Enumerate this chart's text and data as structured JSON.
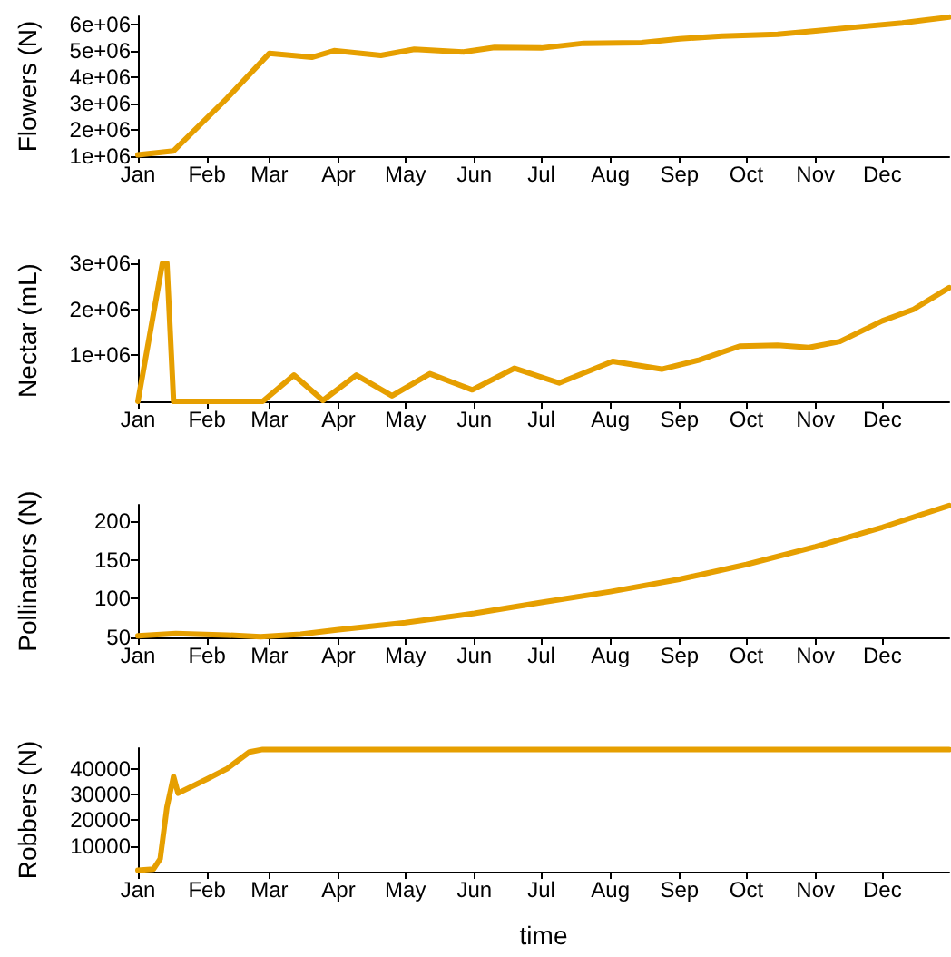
{
  "chart_data": [
    {
      "type": "line",
      "ylabel": "Flowers (N)",
      "marker": "none",
      "line_style": "solid",
      "grid": false,
      "xlim": [
        "--01-01",
        "--12-31"
      ],
      "xticks": [
        {
          "value": "--01-01",
          "label": "Jan"
        },
        {
          "value": "--02-01",
          "label": "Feb"
        },
        {
          "value": "--03-01",
          "label": "Mar"
        },
        {
          "value": "--04-01",
          "label": "Apr"
        },
        {
          "value": "--05-01",
          "label": "May"
        },
        {
          "value": "--06-01",
          "label": "Jun"
        },
        {
          "value": "--07-01",
          "label": "Jul"
        },
        {
          "value": "--08-01",
          "label": "Aug"
        },
        {
          "value": "--09-01",
          "label": "Sep"
        },
        {
          "value": "--10-01",
          "label": "Oct"
        },
        {
          "value": "--11-01",
          "label": "Nov"
        },
        {
          "value": "--12-01",
          "label": "Dec"
        }
      ],
      "ylim": [
        1000000,
        6300000
      ],
      "yticks": [
        {
          "value": 1000000,
          "label": "1e+06"
        },
        {
          "value": 2000000,
          "label": "2e+06"
        },
        {
          "value": 3000000,
          "label": "3e+06"
        },
        {
          "value": 4000000,
          "label": "4e+06"
        },
        {
          "value": 5000000,
          "label": "5e+06"
        },
        {
          "value": 6000000,
          "label": "6e+06"
        }
      ],
      "series": [
        {
          "color": "#e69f00",
          "x": [
            "--01-01",
            "--01-17",
            "--02-10",
            "--03-01",
            "--03-20",
            "--03-30",
            "--04-20",
            "--05-05",
            "--05-27",
            "--06-10",
            "--07-01",
            "--07-20",
            "--08-15",
            "--09-01",
            "--09-20",
            "--10-15",
            "--11-01",
            "--11-20",
            "--12-10",
            "--12-31"
          ],
          "values": [
            1050000,
            1200000,
            3200000,
            4900000,
            4750000,
            5000000,
            4820000,
            5050000,
            4950000,
            5120000,
            5100000,
            5280000,
            5300000,
            5450000,
            5550000,
            5620000,
            5750000,
            5900000,
            6050000,
            6270000
          ]
        }
      ]
    },
    {
      "type": "line",
      "ylabel": "Nectar (mL)",
      "marker": "none",
      "line_style": "solid",
      "grid": false,
      "xlim": [
        "--01-01",
        "--12-31"
      ],
      "xticks": [
        {
          "value": "--01-01",
          "label": "Jan"
        },
        {
          "value": "--02-01",
          "label": "Feb"
        },
        {
          "value": "--03-01",
          "label": "Mar"
        },
        {
          "value": "--04-01",
          "label": "Apr"
        },
        {
          "value": "--05-01",
          "label": "May"
        },
        {
          "value": "--06-01",
          "label": "Jun"
        },
        {
          "value": "--07-01",
          "label": "Jul"
        },
        {
          "value": "--08-01",
          "label": "Aug"
        },
        {
          "value": "--09-01",
          "label": "Sep"
        },
        {
          "value": "--10-01",
          "label": "Oct"
        },
        {
          "value": "--11-01",
          "label": "Nov"
        },
        {
          "value": "--12-01",
          "label": "Dec"
        }
      ],
      "ylim": [
        0,
        3080000
      ],
      "yticks": [
        {
          "value": 1000000,
          "label": "1e+06"
        },
        {
          "value": 2000000,
          "label": "2e+06"
        },
        {
          "value": 3000000,
          "label": "3e+06"
        }
      ],
      "series": [
        {
          "color": "#e69f00",
          "x": [
            "--01-01",
            "--01-12",
            "--01-14",
            "--01-17",
            "--02-26",
            "--03-12",
            "--03-25",
            "--04-09",
            "--04-25",
            "--05-12",
            "--05-31",
            "--06-19",
            "--07-09",
            "--08-02",
            "--08-24",
            "--09-10",
            "--09-28",
            "--10-15",
            "--10-29",
            "--11-12",
            "--12-01",
            "--12-15",
            "--12-31"
          ],
          "values": [
            0,
            3000000,
            3000000,
            0,
            0,
            570000,
            20000,
            570000,
            120000,
            600000,
            250000,
            720000,
            400000,
            870000,
            700000,
            900000,
            1200000,
            1220000,
            1170000,
            1300000,
            1750000,
            2000000,
            2470000
          ]
        }
      ]
    },
    {
      "type": "line",
      "ylabel": "Pollinators (N)",
      "marker": "none",
      "line_style": "solid",
      "grid": false,
      "xlim": [
        "--01-01",
        "--12-31"
      ],
      "xticks": [
        {
          "value": "--01-01",
          "label": "Jan"
        },
        {
          "value": "--02-01",
          "label": "Feb"
        },
        {
          "value": "--03-01",
          "label": "Mar"
        },
        {
          "value": "--04-01",
          "label": "Apr"
        },
        {
          "value": "--05-01",
          "label": "May"
        },
        {
          "value": "--06-01",
          "label": "Jun"
        },
        {
          "value": "--07-01",
          "label": "Jul"
        },
        {
          "value": "--08-01",
          "label": "Aug"
        },
        {
          "value": "--09-01",
          "label": "Sep"
        },
        {
          "value": "--10-01",
          "label": "Oct"
        },
        {
          "value": "--11-01",
          "label": "Nov"
        },
        {
          "value": "--12-01",
          "label": "Dec"
        }
      ],
      "ylim": [
        50,
        221
      ],
      "yticks": [
        50,
        100,
        150,
        200
      ],
      "series": [
        {
          "color": "#e69f00",
          "x": [
            "--01-01",
            "--01-18",
            "--02-10",
            "--02-25",
            "--03-15",
            "--04-01",
            "--05-01",
            "--06-01",
            "--07-01",
            "--08-01",
            "--09-01",
            "--10-01",
            "--11-01",
            "--12-01",
            "--12-31"
          ],
          "values": [
            52,
            55,
            53,
            51,
            54,
            60,
            69,
            81,
            95,
            109,
            125,
            144,
            167,
            192,
            220
          ]
        }
      ]
    },
    {
      "type": "line",
      "ylabel": "Robbers (N)",
      "xlabel": "time",
      "marker": "none",
      "line_style": "solid",
      "grid": false,
      "xlim": [
        "--01-01",
        "--12-31"
      ],
      "xticks": [
        {
          "value": "--01-01",
          "label": "Jan"
        },
        {
          "value": "--02-01",
          "label": "Feb"
        },
        {
          "value": "--03-01",
          "label": "Mar"
        },
        {
          "value": "--04-01",
          "label": "Apr"
        },
        {
          "value": "--05-01",
          "label": "May"
        },
        {
          "value": "--06-01",
          "label": "Jun"
        },
        {
          "value": "--07-01",
          "label": "Jul"
        },
        {
          "value": "--08-01",
          "label": "Aug"
        },
        {
          "value": "--09-01",
          "label": "Sep"
        },
        {
          "value": "--10-01",
          "label": "Oct"
        },
        {
          "value": "--11-01",
          "label": "Nov"
        },
        {
          "value": "--12-01",
          "label": "Dec"
        }
      ],
      "ylim": [
        0,
        48000
      ],
      "yticks": [
        10000,
        20000,
        30000,
        40000
      ],
      "series": [
        {
          "color": "#e69f00",
          "x": [
            "--01-01",
            "--01-08",
            "--01-11",
            "--01-14",
            "--01-17",
            "--01-19",
            "--02-01",
            "--02-10",
            "--02-20",
            "--02-26",
            "--12-31"
          ],
          "values": [
            500,
            1000,
            5000,
            25000,
            37000,
            30500,
            36000,
            40000,
            46500,
            47500,
            47500
          ]
        }
      ]
    }
  ]
}
